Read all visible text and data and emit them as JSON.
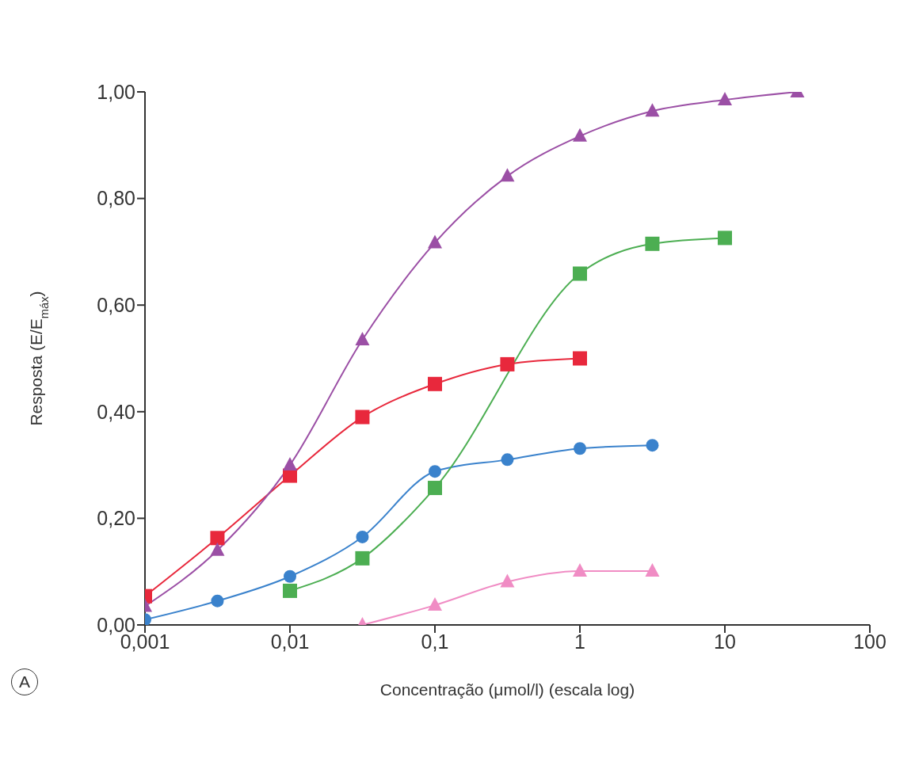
{
  "chart_data": {
    "type": "line",
    "xlabel": "Concentração (μmol/l) (escala log)",
    "ylabel": "Resposta (E/E$_{máx}$)",
    "annotations": [
      "A"
    ],
    "log": "x",
    "xlim": [
      0.001,
      100
    ],
    "xticks": [
      {
        "value": 0.001,
        "label": "0,001"
      },
      {
        "value": 0.01,
        "label": "0,01"
      },
      {
        "value": 0.1,
        "label": "0,1"
      },
      {
        "value": 1,
        "label": "1"
      },
      {
        "value": 10,
        "label": "10"
      },
      {
        "value": 100,
        "label": "100"
      }
    ],
    "ylim": [
      0,
      1
    ],
    "yticks": [
      {
        "value": 0,
        "label": "0,00"
      },
      {
        "value": 0.2,
        "label": "0,20"
      },
      {
        "value": 0.4,
        "label": "0,40"
      },
      {
        "value": 0.6,
        "label": "0,60"
      },
      {
        "value": 0.8,
        "label": "0,80"
      },
      {
        "value": 1,
        "label": "1,00"
      }
    ],
    "series": [
      {
        "color": "#9b4fa5",
        "marker": "triangle",
        "x": [
          0.001,
          0.00316,
          0.01,
          0.0316,
          0.1,
          0.316,
          1,
          3.16,
          10,
          31.6
        ],
        "values": [
          0.035,
          0.14,
          0.3,
          0.535,
          0.717,
          0.842,
          0.917,
          0.964,
          0.985,
          1.0
        ]
      },
      {
        "color": "#e8283c",
        "marker": "square",
        "x": [
          0.001,
          0.00316,
          0.01,
          0.0316,
          0.1,
          0.316,
          1
        ],
        "values": [
          0.054,
          0.163,
          0.28,
          0.39,
          0.452,
          0.489,
          0.5
        ]
      },
      {
        "color": "#4cae52",
        "marker": "square",
        "x": [
          0.01,
          0.0316,
          0.1,
          0.316,
          1,
          3.16,
          10
        ],
        "values": [
          0.064,
          0.125,
          0.257,
          null,
          0.659,
          0.715,
          0.726
        ]
      },
      {
        "color": "#3a82cc",
        "marker": "circle",
        "x": [
          0.001,
          0.00316,
          0.01,
          0.0316,
          0.1,
          0.316,
          1,
          3.16
        ],
        "values": [
          0.01,
          0.045,
          0.091,
          0.165,
          0.288,
          0.31,
          0.331,
          0.337
        ]
      },
      {
        "color": "#f08cc4",
        "marker": "triangle",
        "x": [
          0.0316,
          0.1,
          0.316,
          1,
          3.16
        ],
        "values": [
          0,
          0.037,
          0.081,
          0.101,
          0.101
        ]
      }
    ]
  }
}
